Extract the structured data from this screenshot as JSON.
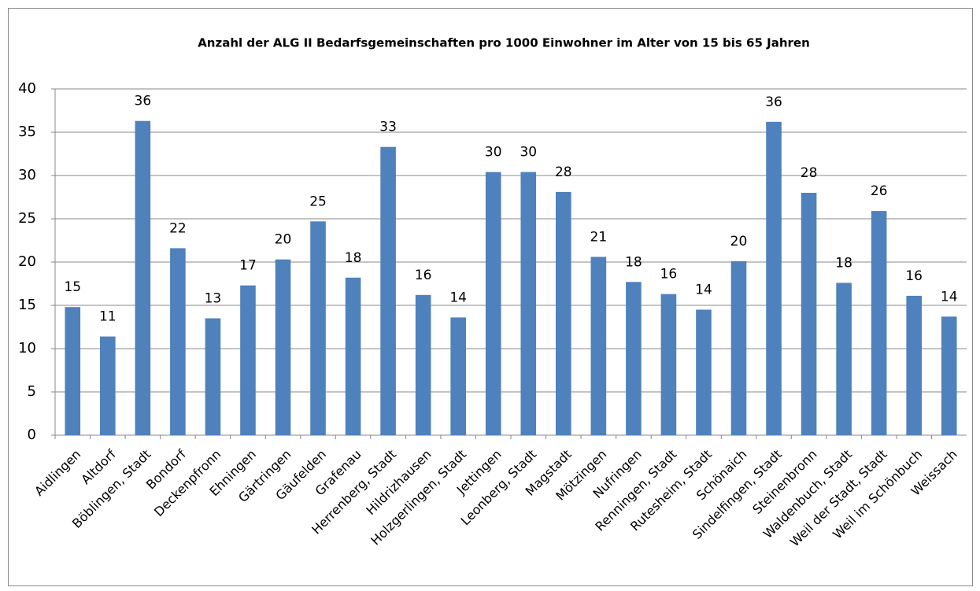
{
  "chart_data": {
    "type": "bar",
    "title": "Anzahl der  ALG II Bedarfsgemeinschaften pro 1000 Einwohner im Alter von 15 bis 65 Jahren",
    "categories": [
      "Aidlingen",
      "Altdorf",
      "Böblingen, Stadt",
      "Bondorf",
      "Deckenpfronn",
      "Ehningen",
      "Gärtringen",
      "Gäufelden",
      "Grafenau",
      "Herrenberg, Stadt",
      "Hildrizhausen",
      "Holzgerlingen, Stadt",
      "Jettingen",
      "Leonberg, Stadt",
      "Magstadt",
      "Mötzingen",
      "Nufringen",
      "Renningen, Stadt",
      "Rutesheim, Stadt",
      "Schönaich",
      "Sindelfingen, Stadt",
      "Steinenbronn",
      "Waldenbuch, Stadt",
      "Weil der Stadt, Stadt",
      "Weil im Schönbuch",
      "Weissach"
    ],
    "values": [
      14.8,
      11.4,
      36.3,
      21.6,
      13.5,
      17.3,
      20.3,
      24.7,
      18.2,
      33.3,
      16.2,
      13.6,
      30.4,
      30.4,
      28.1,
      20.6,
      17.7,
      16.3,
      14.5,
      20.1,
      36.2,
      28.0,
      17.6,
      25.9,
      16.1,
      13.7
    ],
    "value_labels": [
      "15",
      "11",
      "36",
      "22",
      "13",
      "17",
      "20",
      "25",
      "18",
      "33",
      "16",
      "14",
      "30",
      "30",
      "28",
      "21",
      "18",
      "16",
      "14",
      "20",
      "36",
      "28",
      "18",
      "26",
      "16",
      "14"
    ],
    "color": "#4f81bd",
    "ylim": [
      0,
      40
    ],
    "yticks": [
      0,
      5,
      10,
      15,
      20,
      25,
      30,
      35,
      40
    ],
    "grid": true
  }
}
